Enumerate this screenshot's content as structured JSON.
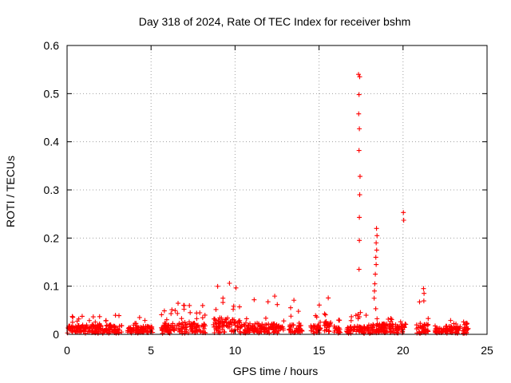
{
  "chart_data": {
    "type": "scatter",
    "title": "Day 318 of 2024, Rate Of TEC Index for receiver bshm",
    "xlabel": "GPS time / hours",
    "ylabel": "ROTI / TECUs",
    "xlim": [
      0,
      25
    ],
    "ylim": [
      0,
      0.6
    ],
    "x_ticks": [
      "0",
      "5",
      "10",
      "15",
      "20",
      "25"
    ],
    "y_ticks": [
      "0",
      "0.1",
      "0.2",
      "0.3",
      "0.4",
      "0.5",
      "0.6"
    ],
    "grid": true,
    "marker": "plus",
    "color": "#ff0000",
    "baseline_segments": [
      [
        0.0,
        3.25,
        0.018,
        0.045
      ],
      [
        3.6,
        4.3,
        0.012,
        0.025
      ],
      [
        4.3,
        5.1,
        0.015,
        0.06
      ],
      [
        5.6,
        8.25,
        0.022,
        0.065
      ],
      [
        8.7,
        10.4,
        0.03,
        0.11
      ],
      [
        10.5,
        12.9,
        0.02,
        0.08
      ],
      [
        13.2,
        14.0,
        0.02,
        0.08
      ],
      [
        14.5,
        15.1,
        0.018,
        0.065
      ],
      [
        15.3,
        15.8,
        0.025,
        0.085
      ],
      [
        15.9,
        16.3,
        0.012,
        0.03
      ],
      [
        16.6,
        17.5,
        0.015,
        0.05
      ],
      [
        17.5,
        18.2,
        0.015,
        0.04
      ],
      [
        18.2,
        18.6,
        0.02,
        0.06
      ],
      [
        18.6,
        20.2,
        0.02,
        0.04
      ],
      [
        20.8,
        21.5,
        0.02,
        0.095
      ],
      [
        21.9,
        22.8,
        0.01,
        0.02
      ],
      [
        22.8,
        23.4,
        0.015,
        0.03
      ],
      [
        23.5,
        23.9,
        0.01,
        0.035
      ]
    ],
    "spikes": [
      [
        17.35,
        0.54
      ],
      [
        17.42,
        0.535
      ],
      [
        17.38,
        0.498
      ],
      [
        17.36,
        0.458
      ],
      [
        17.4,
        0.427
      ],
      [
        17.38,
        0.382
      ],
      [
        17.44,
        0.328
      ],
      [
        17.42,
        0.29
      ],
      [
        17.4,
        0.243
      ],
      [
        17.4,
        0.195
      ],
      [
        17.38,
        0.135
      ],
      [
        18.42,
        0.22
      ],
      [
        18.45,
        0.205
      ],
      [
        18.4,
        0.19
      ],
      [
        18.43,
        0.175
      ],
      [
        18.38,
        0.16
      ],
      [
        18.4,
        0.145
      ],
      [
        18.35,
        0.125
      ],
      [
        18.32,
        0.105
      ],
      [
        18.3,
        0.09
      ],
      [
        18.28,
        0.075
      ],
      [
        20.02,
        0.253
      ],
      [
        20.04,
        0.237
      ],
      [
        21.22,
        0.095
      ],
      [
        21.25,
        0.085
      ]
    ]
  }
}
